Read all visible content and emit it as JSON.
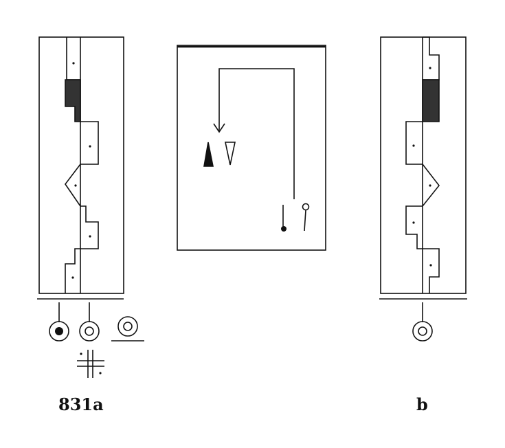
{
  "captions": {
    "left": "831a",
    "right": "b"
  },
  "colors": {
    "ink": "#111111",
    "fill_dark": "#333333",
    "paper": "#ffffff"
  }
}
